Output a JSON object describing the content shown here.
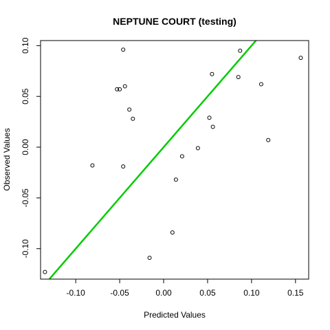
{
  "chart_data": {
    "type": "scatter",
    "title": "NEPTUNE COURT (testing)",
    "xlabel": "Predicted Values",
    "ylabel": "Observed Values",
    "xlim": [
      -0.14,
      0.165
    ],
    "ylim": [
      -0.13,
      0.105
    ],
    "x_ticks": [
      -0.1,
      -0.05,
      0.0,
      0.05,
      0.1,
      0.15
    ],
    "x_tick_labels": [
      "-0.10",
      "-0.05",
      "0.00",
      "0.05",
      "0.10",
      "0.15"
    ],
    "y_ticks": [
      -0.1,
      -0.05,
      0.0,
      0.05,
      0.1
    ],
    "y_tick_labels": [
      "-0.10",
      "-0.05",
      "0.00",
      "0.05",
      "0.10"
    ],
    "grid": false,
    "points": [
      {
        "x": -0.046,
        "y": 0.096
      },
      {
        "x": 0.087,
        "y": 0.095
      },
      {
        "x": 0.156,
        "y": 0.088
      },
      {
        "x": 0.055,
        "y": 0.072
      },
      {
        "x": 0.085,
        "y": 0.069
      },
      {
        "x": 0.111,
        "y": 0.062
      },
      {
        "x": -0.044,
        "y": 0.06
      },
      {
        "x": -0.053,
        "y": 0.057
      },
      {
        "x": -0.05,
        "y": 0.057
      },
      {
        "x": -0.039,
        "y": 0.037
      },
      {
        "x": -0.035,
        "y": 0.028
      },
      {
        "x": 0.052,
        "y": 0.029
      },
      {
        "x": 0.056,
        "y": 0.02
      },
      {
        "x": 0.119,
        "y": 0.007
      },
      {
        "x": 0.039,
        "y": -0.001
      },
      {
        "x": 0.021,
        "y": -0.009
      },
      {
        "x": -0.081,
        "y": -0.018
      },
      {
        "x": -0.046,
        "y": -0.019
      },
      {
        "x": 0.014,
        "y": -0.032
      },
      {
        "x": 0.01,
        "y": -0.084
      },
      {
        "x": -0.016,
        "y": -0.109
      },
      {
        "x": -0.135,
        "y": -0.123
      }
    ],
    "reference_line": {
      "slope": 1,
      "intercept": 0,
      "color": "#00cc00"
    },
    "point_color": "#000000"
  }
}
